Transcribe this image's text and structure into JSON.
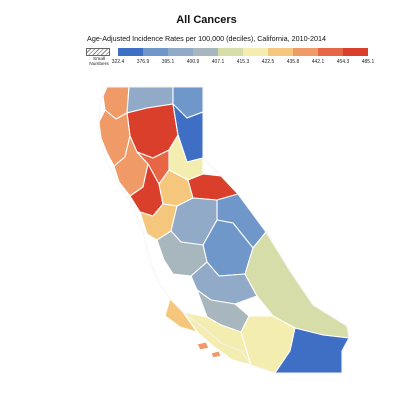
{
  "map": {
    "title": "All Cancers",
    "subtitle": "Age-Adjusted Incidence Rates per 100,000 (deciles), California, 2010-2014",
    "small_label": "Small Numbers",
    "legend_breaks": [
      "322.4",
      "376.9",
      "395.1",
      "400.9",
      "407.1",
      "415.3",
      "422.5",
      "435.8",
      "442.1",
      "454.3",
      "485.1"
    ],
    "legend_colors": [
      "#3f6fc4",
      "#6f97c9",
      "#91aac7",
      "#a8b6bd",
      "#d7dda8",
      "#f3eeb0",
      "#f5c77d",
      "#ef9a67",
      "#e76645",
      "#d93f2a"
    ],
    "regions": [
      {
        "name": "north-coast",
        "decile": 8
      },
      {
        "name": "far-north",
        "decile": 3
      },
      {
        "name": "northeast",
        "decile": 2
      },
      {
        "name": "shasta-region",
        "decile": 10
      },
      {
        "name": "northwest-coast",
        "decile": 8
      },
      {
        "name": "sierra-north",
        "decile": 1
      },
      {
        "name": "upper-sacramento",
        "decile": 6
      },
      {
        "name": "north-bay",
        "decile": 8
      },
      {
        "name": "sacramento-central",
        "decile": 9
      },
      {
        "name": "bay-area",
        "decile": 10
      },
      {
        "name": "delta",
        "decile": 7
      },
      {
        "name": "sierra-central",
        "decile": 10
      },
      {
        "name": "southeast-sierra",
        "decile": 2
      },
      {
        "name": "central-coast",
        "decile": 7
      },
      {
        "name": "san-joaquin",
        "decile": 3
      },
      {
        "name": "fresno-tulare",
        "decile": 2
      },
      {
        "name": "central-coast-south",
        "decile": 4
      },
      {
        "name": "kern",
        "decile": 3
      },
      {
        "name": "mojave",
        "decile": 5
      },
      {
        "name": "los-angeles",
        "decile": 4
      },
      {
        "name": "ventura-orange",
        "decile": 6
      },
      {
        "name": "san-diego",
        "decile": 6
      },
      {
        "name": "imperial",
        "decile": 1
      },
      {
        "name": "santa-barbara",
        "decile": 7
      },
      {
        "name": "islands",
        "decile": 8
      }
    ]
  }
}
